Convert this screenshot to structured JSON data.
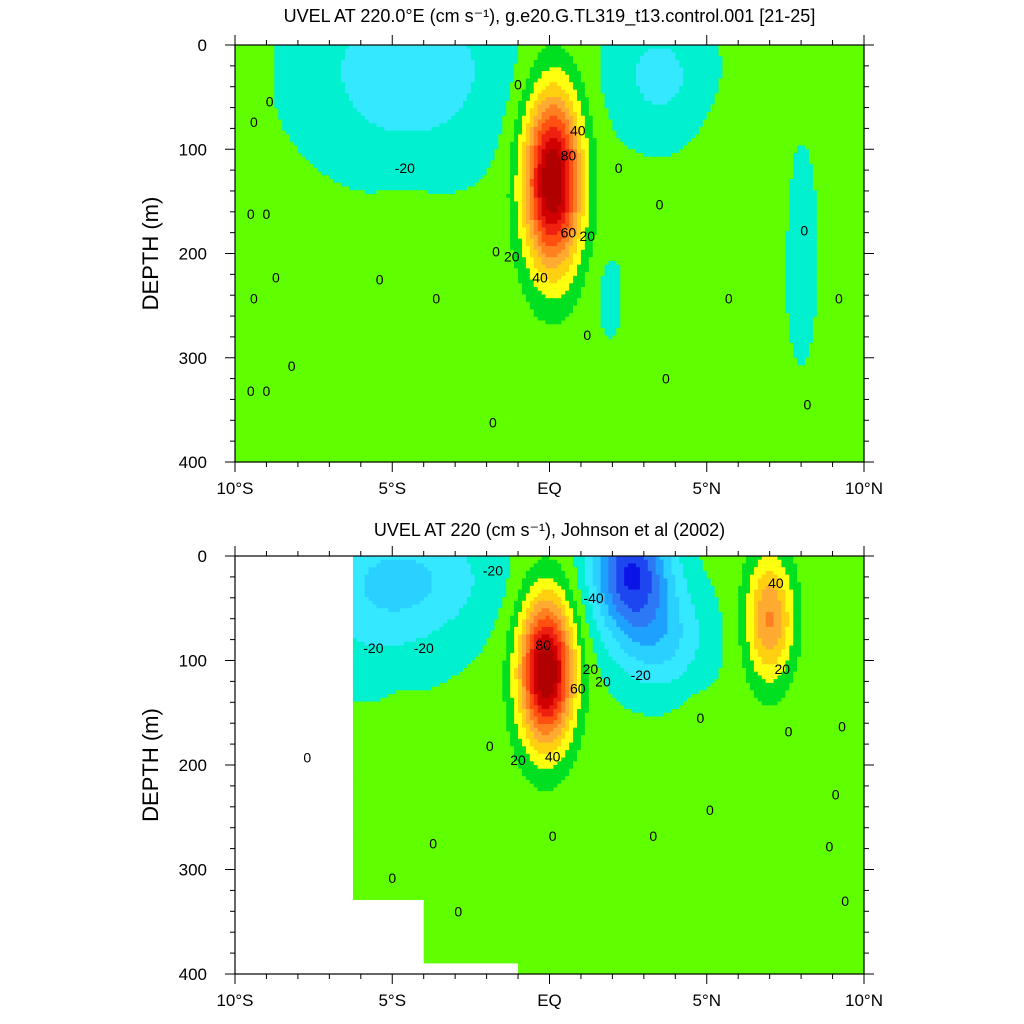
{
  "chart_data": [
    {
      "type": "heatmap",
      "title": "UVEL AT 220.0°E (cm s⁻¹), g.e20.G.TL319_t13.control.001 [21-25]",
      "xlabel": "",
      "ylabel": "DEPTH (m)",
      "x_ticks": [
        "10°S",
        "5°S",
        "EQ",
        "5°N",
        "10°N"
      ],
      "y_ticks": [
        "0",
        "100",
        "200",
        "300",
        "400"
      ],
      "xlim": [
        -10,
        10
      ],
      "ylim": [
        400,
        0
      ],
      "y_axis": "inverted",
      "units": "cm s⁻¹",
      "contour_levels": [
        -60,
        -50,
        -40,
        -30,
        -20,
        -10,
        0,
        10,
        20,
        30,
        40,
        50,
        60,
        70,
        80,
        90,
        100
      ],
      "features": [
        {
          "kind": "max",
          "lat": 0.1,
          "depth": 130,
          "value": 100
        },
        {
          "kind": "min",
          "lat": -4.5,
          "depth": 25,
          "value": -18
        },
        {
          "kind": "min",
          "lat": 3.5,
          "depth": 30,
          "value": -16
        },
        {
          "kind": "max",
          "lat": 5.8,
          "depth": 150,
          "value": 8
        },
        {
          "kind": "max",
          "lat": -4.6,
          "depth": 230,
          "value": 6
        }
      ],
      "contour_labels": [
        {
          "text": "0",
          "lat": -1.0,
          "depth": 38
        },
        {
          "text": "40",
          "lat": 0.9,
          "depth": 82
        },
        {
          "text": "80",
          "lat": 0.6,
          "depth": 106
        },
        {
          "text": "60",
          "lat": 0.6,
          "depth": 180
        },
        {
          "text": "20",
          "lat": 1.2,
          "depth": 183
        },
        {
          "text": "20",
          "lat": -1.2,
          "depth": 203
        },
        {
          "text": "40",
          "lat": -0.3,
          "depth": 223
        },
        {
          "text": "0",
          "lat": 1.2,
          "depth": 278
        },
        {
          "text": "0",
          "lat": 2.2,
          "depth": 118
        },
        {
          "text": "0",
          "lat": 3.5,
          "depth": 153
        },
        {
          "text": "0",
          "lat": 3.7,
          "depth": 320
        },
        {
          "text": "0",
          "lat": 5.7,
          "depth": 243
        },
        {
          "text": "0",
          "lat": 8.1,
          "depth": 178
        },
        {
          "text": "0",
          "lat": 8.2,
          "depth": 345
        },
        {
          "text": "0",
          "lat": 9.2,
          "depth": 243
        },
        {
          "text": "0",
          "lat": -1.7,
          "depth": 198
        },
        {
          "text": "0",
          "lat": -1.8,
          "depth": 362
        },
        {
          "text": "0",
          "lat": -5.4,
          "depth": 225
        },
        {
          "text": "0",
          "lat": -3.6,
          "depth": 243
        },
        {
          "text": "0",
          "lat": -9.4,
          "depth": 74
        },
        {
          "text": "0",
          "lat": -9.5,
          "depth": 162
        },
        {
          "text": "0",
          "lat": -9.4,
          "depth": 243
        },
        {
          "text": "0",
          "lat": -9.5,
          "depth": 332
        },
        {
          "text": "0",
          "lat": -8.9,
          "depth": 54
        },
        {
          "text": "0",
          "lat": -9.0,
          "depth": 162
        },
        {
          "text": "0",
          "lat": -8.7,
          "depth": 223
        },
        {
          "text": "0",
          "lat": -9.0,
          "depth": 332
        },
        {
          "text": "0",
          "lat": -8.2,
          "depth": 308
        },
        {
          "text": "-20",
          "lat": -4.6,
          "depth": 118
        }
      ]
    },
    {
      "type": "heatmap",
      "title": "UVEL AT 220 (cm s⁻¹), Johnson et al (2002)",
      "xlabel": "",
      "ylabel": "DEPTH (m)",
      "x_ticks": [
        "10°S",
        "5°S",
        "EQ",
        "5°N",
        "10°N"
      ],
      "y_ticks": [
        "0",
        "100",
        "200",
        "300",
        "400"
      ],
      "xlim": [
        -10,
        10
      ],
      "ylim": [
        400,
        0
      ],
      "y_axis": "inverted",
      "units": "cm s⁻¹",
      "contour_levels": [
        -60,
        -50,
        -40,
        -30,
        -20,
        -10,
        0,
        10,
        20,
        30,
        40,
        50,
        60,
        70,
        80,
        90,
        100
      ],
      "features": [
        {
          "kind": "max",
          "lat": -0.1,
          "depth": 110,
          "value": 100
        },
        {
          "kind": "min",
          "lat": 2.6,
          "depth": 15,
          "value": -62
        },
        {
          "kind": "max",
          "lat": 7.0,
          "depth": 60,
          "value": 48
        },
        {
          "kind": "min",
          "lat": -4.7,
          "depth": 20,
          "value": -24
        },
        {
          "kind": "max",
          "lat": 4.6,
          "depth": 210,
          "value": 6
        }
      ],
      "contour_labels": [
        {
          "text": "-20",
          "lat": -1.8,
          "depth": 14
        },
        {
          "text": "-40",
          "lat": 1.4,
          "depth": 40
        },
        {
          "text": "-20",
          "lat": 2.9,
          "depth": 114
        },
        {
          "text": "80",
          "lat": -0.2,
          "depth": 85
        },
        {
          "text": "20",
          "lat": 1.3,
          "depth": 108
        },
        {
          "text": "60",
          "lat": 0.9,
          "depth": 127
        },
        {
          "text": "20",
          "lat": 1.7,
          "depth": 120
        },
        {
          "text": "20",
          "lat": -1.0,
          "depth": 195
        },
        {
          "text": "40",
          "lat": 0.1,
          "depth": 192
        },
        {
          "text": "0",
          "lat": 0.1,
          "depth": 268
        },
        {
          "text": "40",
          "lat": 7.2,
          "depth": 26
        },
        {
          "text": "20",
          "lat": 7.4,
          "depth": 108
        },
        {
          "text": "0",
          "lat": 4.8,
          "depth": 155
        },
        {
          "text": "0",
          "lat": 7.6,
          "depth": 168
        },
        {
          "text": "0",
          "lat": 9.3,
          "depth": 163
        },
        {
          "text": "0",
          "lat": 9.1,
          "depth": 228
        },
        {
          "text": "0",
          "lat": 5.1,
          "depth": 243
        },
        {
          "text": "0",
          "lat": 3.3,
          "depth": 268
        },
        {
          "text": "0",
          "lat": 8.9,
          "depth": 278
        },
        {
          "text": "0",
          "lat": 9.4,
          "depth": 330
        },
        {
          "text": "0",
          "lat": -1.9,
          "depth": 182
        },
        {
          "text": "0",
          "lat": -3.7,
          "depth": 275
        },
        {
          "text": "0",
          "lat": -5.0,
          "depth": 308
        },
        {
          "text": "0",
          "lat": -2.9,
          "depth": 340
        },
        {
          "text": "0",
          "lat": -7.7,
          "depth": 193
        },
        {
          "text": "-20",
          "lat": -5.6,
          "depth": 88
        },
        {
          "text": "-20",
          "lat": -4.0,
          "depth": 88
        }
      ]
    }
  ],
  "palette": {
    "levels": [
      -60,
      -50,
      -40,
      -30,
      -20,
      -10,
      0,
      10,
      20,
      30,
      40,
      50,
      60,
      70,
      80,
      90
    ],
    "colors": [
      "#0a14e6",
      "#1e46f0",
      "#2d78f5",
      "#1ea0ff",
      "#2ad0ff",
      "#34e8ff",
      "#00f0d0",
      "#60ff00",
      "#00e020",
      "#ffff10",
      "#ffd010",
      "#ffaa30",
      "#ff8020",
      "#ff5010",
      "#f02010",
      "#d00000",
      "#b00000"
    ]
  }
}
